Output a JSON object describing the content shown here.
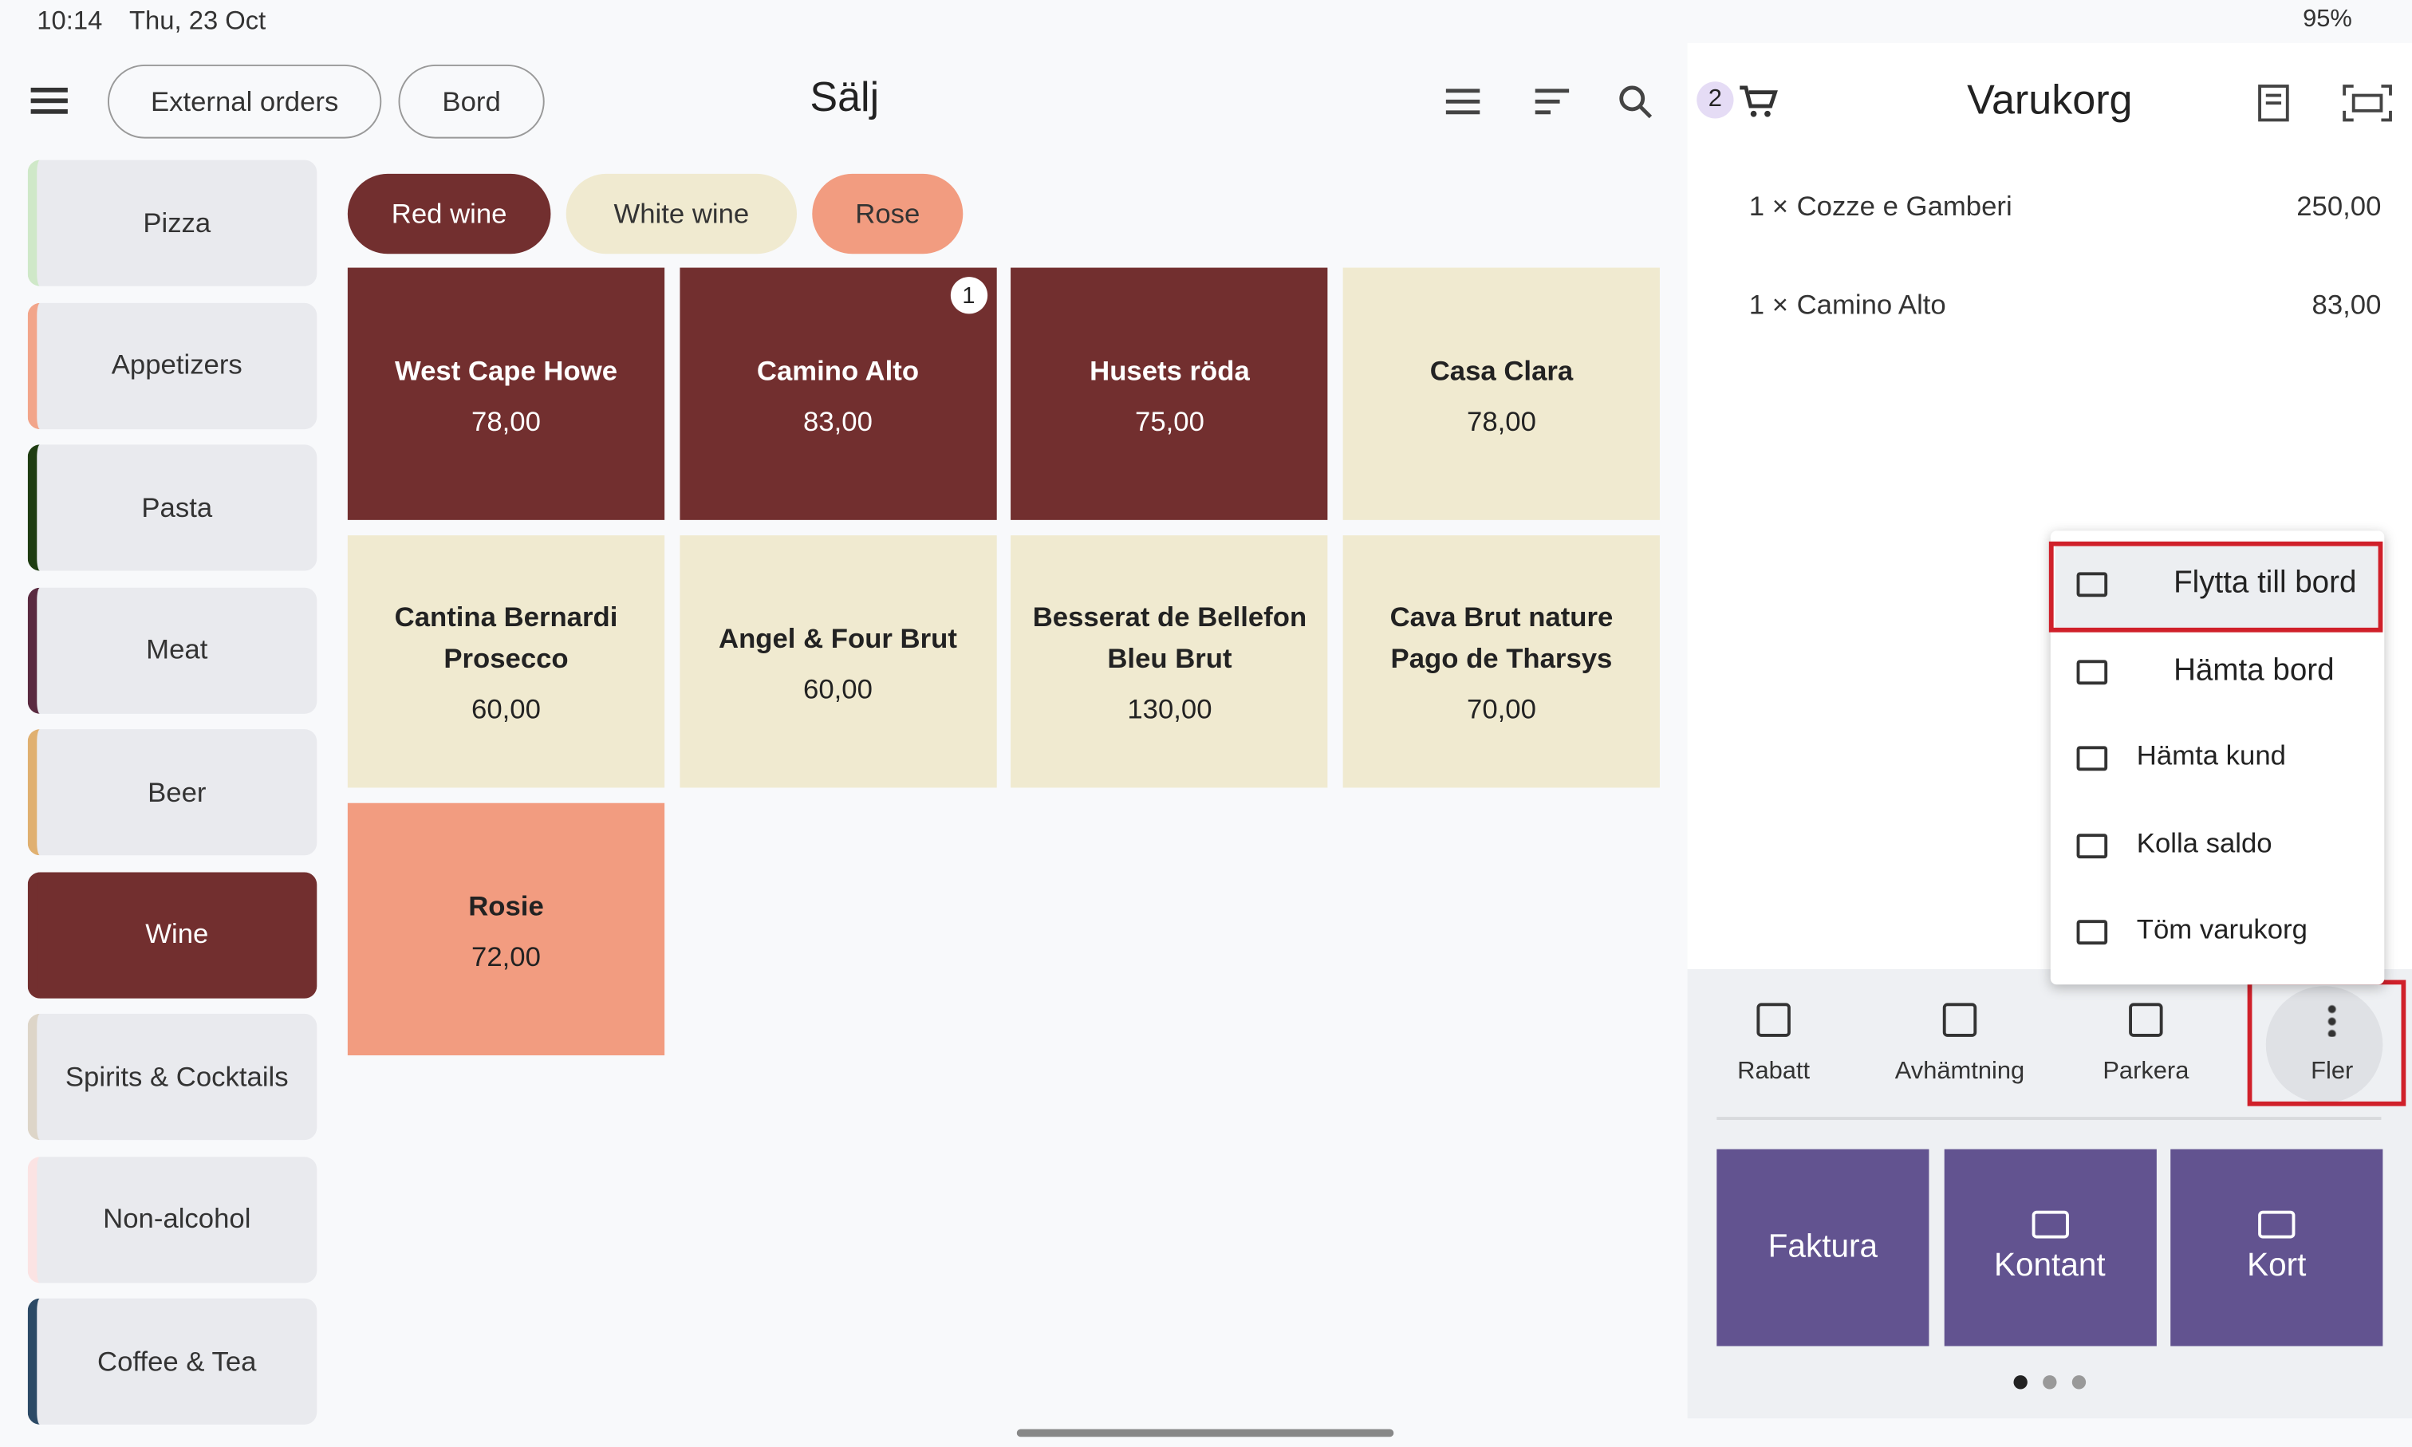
{
  "status": {
    "time": "10:14",
    "date": "Thu, 23 Oct",
    "battery": "95%"
  },
  "toolbar": {
    "buttons": [
      "External orders",
      "Bord"
    ],
    "title": "Sälj"
  },
  "categories": [
    "Pizza",
    "Appetizers",
    "Pasta",
    "Meat",
    "Beer",
    "Wine",
    "Spirits & Cocktails",
    "Non-alcohol",
    "Coffee & Tea"
  ],
  "subcategories": [
    "Red wine",
    "White wine",
    "Rose"
  ],
  "products": [
    {
      "name": "West Cape Howe",
      "price": "78,00"
    },
    {
      "name": "Camino Alto",
      "price": "83,00",
      "badge": "1"
    },
    {
      "name": "Husets röda",
      "price": "75,00"
    },
    {
      "name": "Casa Clara",
      "price": "78,00"
    },
    {
      "name": "Cantina Bernardi Prosecco",
      "price": "60,00"
    },
    {
      "name": "Angel & Four Brut",
      "price": "60,00"
    },
    {
      "name": "Besserat de Bellefon Bleu Brut",
      "price": "130,00"
    },
    {
      "name": "Cava Brut nature Pago de Tharsys",
      "price": "70,00"
    },
    {
      "name": "Rosie",
      "price": "72,00"
    }
  ],
  "cart": {
    "count": "2",
    "title": "Varukorg",
    "items": [
      {
        "qty": "1 ×",
        "name": "Cozze e Gamberi",
        "price": "250,00"
      },
      {
        "qty": "1 ×",
        "name": "Camino Alto",
        "price": "83,00"
      }
    ]
  },
  "menu": [
    "Flytta till bord",
    "Hämta bord",
    "Hämta kund",
    "Kolla saldo",
    "Töm varukorg"
  ],
  "actions": [
    "Rabatt",
    "Avhämtning",
    "Parkera",
    "Fler"
  ],
  "payments": [
    "Faktura",
    "Kontant",
    "Kort"
  ]
}
